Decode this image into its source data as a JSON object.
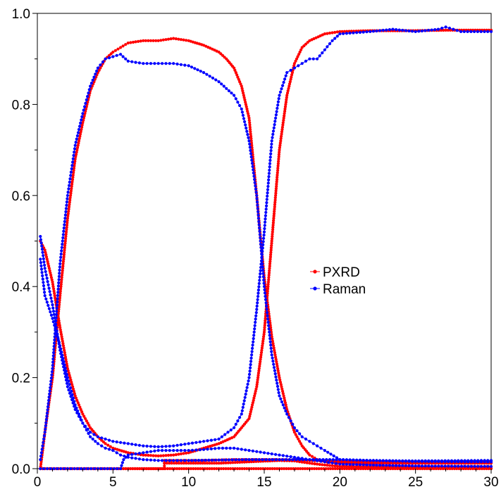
{
  "chart_data": {
    "type": "line",
    "title": "",
    "xlabel": "",
    "ylabel": "",
    "xlim": [
      0,
      30
    ],
    "ylim": [
      0,
      1.0
    ],
    "x_ticks": [
      0,
      5,
      10,
      15,
      20,
      25,
      30
    ],
    "x_tick_labels": [
      "0",
      "5",
      "10",
      "15",
      "20",
      "25",
      "30"
    ],
    "y_ticks": [
      0,
      0.2,
      0.4,
      0.6,
      0.8,
      1.0
    ],
    "y_tick_labels": [
      "0.0",
      "0.2",
      "0.4",
      "0.6",
      "0.8",
      "1.0"
    ],
    "grid": false,
    "legend_position": "center-right",
    "legend": [
      {
        "label": "PXRD",
        "color": "#ff0000"
      },
      {
        "label": "Raman",
        "color": "#0000ff"
      }
    ],
    "series": [
      {
        "name": "PXRD",
        "color": "#ff0000",
        "curves": [
          {
            "points": [
              [
                0.2,
                0.5
              ],
              [
                0.5,
                0.48
              ],
              [
                1,
                0.41
              ],
              [
                1.5,
                0.31
              ],
              [
                2,
                0.22
              ],
              [
                2.5,
                0.16
              ],
              [
                3,
                0.12
              ],
              [
                3.5,
                0.09
              ],
              [
                4,
                0.07
              ],
              [
                4.5,
                0.055
              ],
              [
                5,
                0.045
              ],
              [
                6,
                0.035
              ],
              [
                7,
                0.03
              ],
              [
                8,
                0.028
              ],
              [
                9,
                0.03
              ],
              [
                10,
                0.035
              ],
              [
                11,
                0.045
              ],
              [
                12,
                0.055
              ],
              [
                13,
                0.07
              ],
              [
                14,
                0.11
              ],
              [
                14.5,
                0.18
              ],
              [
                15,
                0.3
              ],
              [
                15.5,
                0.5
              ],
              [
                16,
                0.7
              ],
              [
                16.5,
                0.82
              ],
              [
                17,
                0.89
              ],
              [
                17.5,
                0.925
              ],
              [
                18,
                0.94
              ],
              [
                19,
                0.955
              ],
              [
                20,
                0.96
              ],
              [
                22,
                0.962
              ],
              [
                25,
                0.962
              ],
              [
                27,
                0.963
              ],
              [
                30,
                0.963
              ]
            ]
          },
          {
            "points": [
              [
                0.2,
                0
              ],
              [
                0.5,
                0.08
              ],
              [
                1,
                0.2
              ],
              [
                1.5,
                0.38
              ],
              [
                2,
                0.55
              ],
              [
                2.5,
                0.68
              ],
              [
                3,
                0.76
              ],
              [
                3.5,
                0.83
              ],
              [
                4,
                0.87
              ],
              [
                4.5,
                0.9
              ],
              [
                5,
                0.915
              ],
              [
                5.5,
                0.925
              ],
              [
                6,
                0.935
              ],
              [
                7,
                0.94
              ],
              [
                8,
                0.94
              ],
              [
                9,
                0.945
              ],
              [
                10,
                0.94
              ],
              [
                11,
                0.93
              ],
              [
                12,
                0.915
              ],
              [
                12.5,
                0.9
              ],
              [
                13,
                0.88
              ],
              [
                13.5,
                0.84
              ],
              [
                14,
                0.77
              ],
              [
                14.5,
                0.6
              ],
              [
                15,
                0.42
              ],
              [
                15.5,
                0.29
              ],
              [
                16,
                0.2
              ],
              [
                16.5,
                0.13
              ],
              [
                17,
                0.08
              ],
              [
                17.5,
                0.05
              ],
              [
                18,
                0.03
              ],
              [
                18.5,
                0.02
              ],
              [
                19,
                0.015
              ],
              [
                20,
                0.012
              ],
              [
                22,
                0.012
              ],
              [
                25,
                0.012
              ],
              [
                30,
                0.012
              ]
            ]
          },
          {
            "points": [
              [
                0.2,
                0
              ],
              [
                2,
                0
              ],
              [
                4,
                0
              ],
              [
                6,
                0
              ],
              [
                8.4,
                0
              ],
              [
                8.4,
                0.018
              ],
              [
                9,
                0.018
              ],
              [
                10,
                0.018
              ],
              [
                11,
                0.018
              ],
              [
                12,
                0.019
              ],
              [
                13,
                0.02
              ],
              [
                14,
                0.02
              ],
              [
                15,
                0.02
              ],
              [
                16,
                0.02
              ],
              [
                17,
                0.019
              ],
              [
                18,
                0.018
              ],
              [
                19,
                0.017
              ],
              [
                20,
                0.016
              ],
              [
                22,
                0.015
              ],
              [
                25,
                0.015
              ],
              [
                28,
                0.015
              ],
              [
                30,
                0.015
              ]
            ]
          },
          {
            "points": [
              [
                0.2,
                0
              ],
              [
                2,
                0
              ],
              [
                4,
                0
              ],
              [
                6,
                0
              ],
              [
                8,
                0
              ],
              [
                10,
                0
              ],
              [
                12,
                0
              ],
              [
                14,
                0
              ],
              [
                16,
                0
              ],
              [
                18,
                0
              ],
              [
                20,
                0
              ],
              [
                22,
                0
              ],
              [
                25,
                0
              ],
              [
                30,
                0
              ]
            ]
          },
          {
            "points": [
              [
                8.4,
                0.012
              ],
              [
                10,
                0.012
              ],
              [
                12,
                0.012
              ],
              [
                14,
                0.015
              ],
              [
                16,
                0.018
              ],
              [
                17,
                0.017
              ],
              [
                18,
                0.012
              ],
              [
                19,
                0.008
              ],
              [
                20,
                0.005
              ],
              [
                22,
                0.004
              ],
              [
                25,
                0.004
              ],
              [
                28,
                0.004
              ],
              [
                30,
                0.004
              ]
            ]
          }
        ]
      },
      {
        "name": "Raman",
        "color": "#0000ff",
        "curves": [
          {
            "points": [
              [
                0.2,
                0.51
              ],
              [
                0.5,
                0.44
              ],
              [
                1,
                0.36
              ],
              [
                1.5,
                0.26
              ],
              [
                2,
                0.18
              ],
              [
                2.5,
                0.13
              ],
              [
                3,
                0.1
              ],
              [
                3.5,
                0.08
              ],
              [
                4,
                0.07
              ],
              [
                4.5,
                0.065
              ],
              [
                5,
                0.06
              ],
              [
                6,
                0.055
              ],
              [
                7,
                0.05
              ],
              [
                8,
                0.048
              ],
              [
                9,
                0.05
              ],
              [
                10,
                0.055
              ],
              [
                11,
                0.06
              ],
              [
                12,
                0.065
              ],
              [
                13,
                0.09
              ],
              [
                13.5,
                0.12
              ],
              [
                14,
                0.2
              ],
              [
                14.5,
                0.35
              ],
              [
                15,
                0.52
              ],
              [
                15.5,
                0.72
              ],
              [
                16,
                0.82
              ],
              [
                16.5,
                0.87
              ],
              [
                17,
                0.88
              ],
              [
                17.5,
                0.89
              ],
              [
                18,
                0.9
              ],
              [
                18.5,
                0.9
              ],
              [
                19,
                0.92
              ],
              [
                19.5,
                0.94
              ],
              [
                20,
                0.955
              ],
              [
                22,
                0.96
              ],
              [
                23.5,
                0.965
              ],
              [
                25,
                0.96
              ],
              [
                26.5,
                0.965
              ],
              [
                27,
                0.97
              ],
              [
                28,
                0.96
              ],
              [
                30,
                0.96
              ]
            ]
          },
          {
            "points": [
              [
                0.2,
                0.02
              ],
              [
                0.5,
                0.08
              ],
              [
                1,
                0.22
              ],
              [
                1.5,
                0.45
              ],
              [
                2,
                0.6
              ],
              [
                2.5,
                0.71
              ],
              [
                3,
                0.78
              ],
              [
                3.5,
                0.84
              ],
              [
                4,
                0.88
              ],
              [
                4.5,
                0.9
              ],
              [
                5,
                0.905
              ],
              [
                5.5,
                0.91
              ],
              [
                6,
                0.895
              ],
              [
                7,
                0.89
              ],
              [
                8,
                0.89
              ],
              [
                9,
                0.89
              ],
              [
                10,
                0.885
              ],
              [
                11,
                0.87
              ],
              [
                12,
                0.85
              ],
              [
                13,
                0.82
              ],
              [
                13.5,
                0.79
              ],
              [
                14,
                0.72
              ],
              [
                14.5,
                0.6
              ],
              [
                15,
                0.4
              ],
              [
                15.5,
                0.25
              ],
              [
                16,
                0.16
              ],
              [
                16.5,
                0.12
              ],
              [
                17,
                0.09
              ],
              [
                17.5,
                0.07
              ],
              [
                18,
                0.06
              ],
              [
                18.5,
                0.05
              ],
              [
                19,
                0.04
              ],
              [
                20,
                0.02
              ],
              [
                22,
                0.018
              ],
              [
                25,
                0.016
              ],
              [
                30,
                0.015
              ]
            ]
          },
          {
            "points": [
              [
                0.2,
                0.46
              ],
              [
                0.5,
                0.38
              ],
              [
                1,
                0.33
              ],
              [
                1.5,
                0.27
              ],
              [
                2,
                0.2
              ],
              [
                2.5,
                0.14
              ],
              [
                3,
                0.1
              ],
              [
                3.5,
                0.07
              ],
              [
                4,
                0.055
              ],
              [
                4.5,
                0.045
              ],
              [
                5,
                0.04
              ],
              [
                5.5,
                0.03
              ],
              [
                6,
                0.025
              ],
              [
                7,
                0.02
              ],
              [
                8,
                0.018
              ],
              [
                9,
                0.018
              ],
              [
                10,
                0.018
              ],
              [
                12,
                0.019
              ],
              [
                14,
                0.02
              ],
              [
                16,
                0.02
              ],
              [
                18,
                0.02
              ],
              [
                20,
                0.02
              ],
              [
                22,
                0.018
              ],
              [
                25,
                0.017
              ],
              [
                30,
                0.018
              ]
            ]
          },
          {
            "points": [
              [
                0.2,
                0
              ],
              [
                2,
                0
              ],
              [
                4,
                0
              ],
              [
                5.5,
                0
              ],
              [
                5.7,
                0.02
              ],
              [
                6,
                0.03
              ],
              [
                7,
                0.035
              ],
              [
                8,
                0.04
              ],
              [
                9,
                0.04
              ],
              [
                10,
                0.04
              ],
              [
                11,
                0.042
              ],
              [
                12,
                0.045
              ],
              [
                13,
                0.045
              ],
              [
                14,
                0.04
              ],
              [
                15,
                0.035
              ],
              [
                16,
                0.03
              ],
              [
                17,
                0.025
              ],
              [
                18,
                0.02
              ],
              [
                19,
                0.015
              ],
              [
                20,
                0.01
              ],
              [
                22,
                0.008
              ],
              [
                25,
                0.006
              ],
              [
                30,
                0.005
              ]
            ]
          }
        ]
      }
    ]
  }
}
